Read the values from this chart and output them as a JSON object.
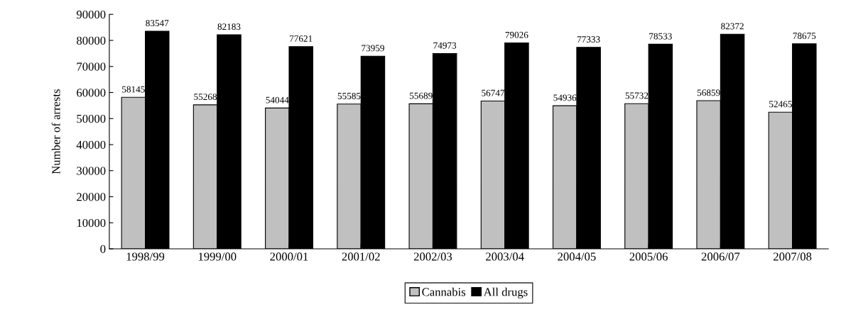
{
  "chart_data": {
    "type": "bar",
    "ylabel": "Number of arrests",
    "categories": [
      "1998/99",
      "1999/00",
      "2000/01",
      "2001/02",
      "2002/03",
      "2003/04",
      "2004/05",
      "2005/06",
      "2006/07",
      "2007/08"
    ],
    "series": [
      {
        "name": "Cannabis",
        "color": "#c0c0c0",
        "values": [
          58145,
          55268,
          54044,
          55585,
          55689,
          56747,
          54936,
          55732,
          56859,
          52465
        ]
      },
      {
        "name": "All drugs",
        "color": "#000000",
        "values": [
          83547,
          82183,
          77621,
          73959,
          74973,
          79026,
          77333,
          78533,
          82372,
          78675
        ]
      }
    ],
    "ylim": [
      0,
      90000
    ],
    "yticks": [
      0,
      10000,
      20000,
      30000,
      40000,
      50000,
      60000,
      70000,
      80000,
      90000
    ],
    "data_labels": true,
    "legend": "bottom",
    "grid": false
  }
}
